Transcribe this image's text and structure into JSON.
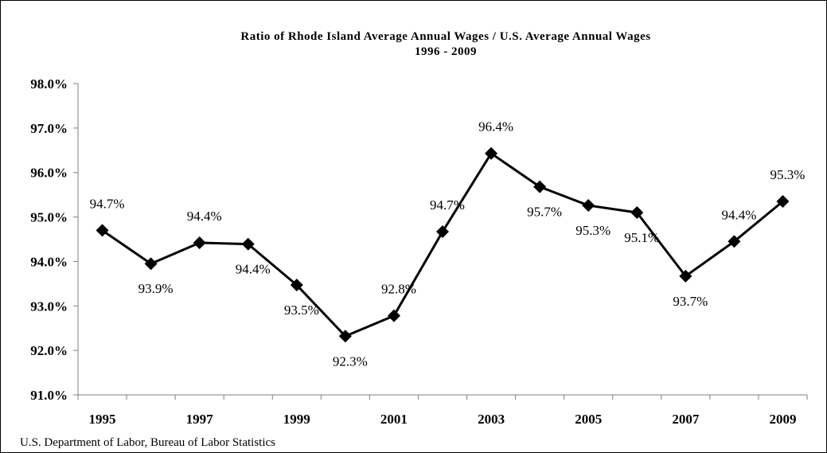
{
  "chart_data": {
    "type": "line",
    "title": "Ratio of Rhode Island Average Annual Wages / U.S. Average Annual Wages",
    "subtitle": "1996 - 2009",
    "x": [
      1995,
      1996,
      1997,
      1998,
      1999,
      2000,
      2001,
      2002,
      2003,
      2004,
      2005,
      2006,
      2007,
      2008,
      2009
    ],
    "series": [
      {
        "values": [
          94.7,
          93.95,
          94.42,
          94.39,
          93.47,
          92.32,
          92.78,
          94.67,
          96.43,
          95.68,
          95.26,
          95.1,
          93.67,
          94.45,
          95.35
        ],
        "labels": [
          "94.7%",
          "93.9%",
          "94.4%",
          "94.4%",
          "93.5%",
          "92.3%",
          "92.8%",
          "94.7%",
          "96.4%",
          "95.7%",
          "95.3%",
          "95.1%",
          "93.7%",
          "94.4%",
          "95.3%"
        ]
      }
    ],
    "x_tick_labels": [
      "1995",
      "1997",
      "1999",
      "2001",
      "2003",
      "2005",
      "2007",
      "2009"
    ],
    "y_tick_labels": [
      "91.0%",
      "92.0%",
      "93.0%",
      "94.0%",
      "95.0%",
      "96.0%",
      "97.0%",
      "98.0%"
    ],
    "ylim": [
      91,
      98
    ],
    "y_unit": "%",
    "grid": false,
    "legend": "none",
    "colors": {
      "line": "#000000",
      "marker": "#000000",
      "axis": "#808080"
    }
  },
  "source": "U.S. Department of Labor, Bureau of Labor Statistics"
}
